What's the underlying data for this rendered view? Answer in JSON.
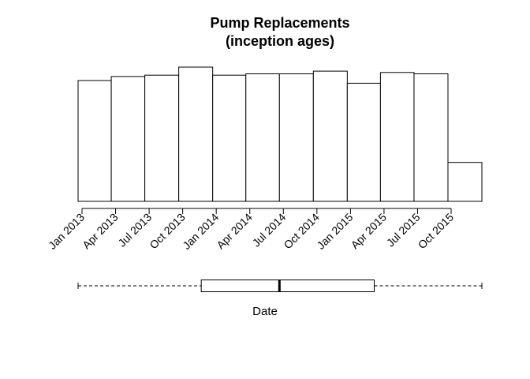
{
  "chart_data": [
    {
      "type": "histogram",
      "title_lines": [
        "Pump Replacements",
        "(inception ages)"
      ],
      "bins": [
        {
          "start": "2013-01-01",
          "end": "2013-04-01",
          "value": 0.9
        },
        {
          "start": "2013-04-01",
          "end": "2013-07-01",
          "value": 0.93
        },
        {
          "start": "2013-07-01",
          "end": "2013-10-01",
          "value": 0.94
        },
        {
          "start": "2013-10-01",
          "end": "2014-01-01",
          "value": 1.0
        },
        {
          "start": "2014-01-01",
          "end": "2014-04-01",
          "value": 0.94
        },
        {
          "start": "2014-04-01",
          "end": "2014-07-01",
          "value": 0.95
        },
        {
          "start": "2014-07-01",
          "end": "2014-10-01",
          "value": 0.95
        },
        {
          "start": "2014-10-01",
          "end": "2015-01-01",
          "value": 0.97
        },
        {
          "start": "2015-01-01",
          "end": "2015-04-01",
          "value": 0.88
        },
        {
          "start": "2015-04-01",
          "end": "2015-07-01",
          "value": 0.96
        },
        {
          "start": "2015-07-01",
          "end": "2015-10-01",
          "value": 0.95
        },
        {
          "start": "2015-10-01",
          "end": "2016-01-01",
          "value": 0.29
        }
      ],
      "x_ticks": [
        "Jan 2013",
        "Apr 2013",
        "Jul 2013",
        "Oct 2013",
        "Jan 2014",
        "Apr 2014",
        "Jul 2014",
        "Oct 2014",
        "Jan 2015",
        "Apr 2015",
        "Jul 2015",
        "Oct 2015"
      ],
      "xlim": [
        "2013-01-01",
        "2016-01-01"
      ],
      "y_axis_shown": false,
      "grid": false
    },
    {
      "type": "boxplot",
      "orientation": "horizontal",
      "xlabel": "Date",
      "whisker_low": "2013-01-01",
      "q1": "2013-12-01",
      "median": "2014-07-01",
      "q3": "2015-03-15",
      "whisker_high": "2016-01-01"
    }
  ]
}
